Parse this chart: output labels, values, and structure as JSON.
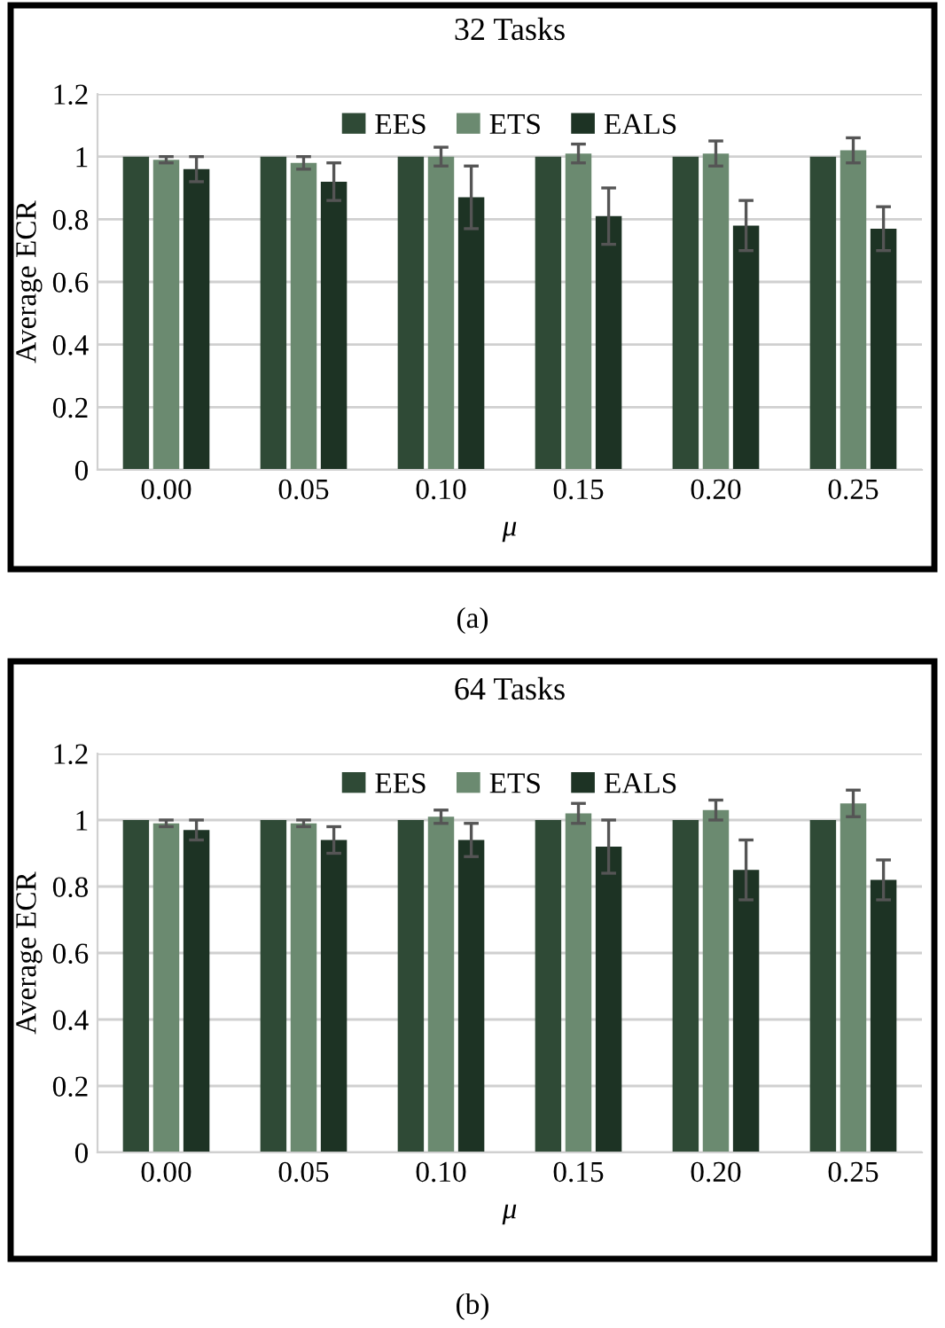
{
  "chart_data": [
    {
      "type": "bar",
      "title": "32 Tasks",
      "xlabel": "μ",
      "ylabel": "Average ECR",
      "categories": [
        "0.00",
        "0.05",
        "0.10",
        "0.15",
        "0.20",
        "0.25"
      ],
      "ylim": [
        0,
        1.2
      ],
      "yticks": [
        0,
        0.2,
        0.4,
        0.6,
        0.8,
        1,
        1.2
      ],
      "grid": "y",
      "legend": "top",
      "annotations": [
        "(a)"
      ],
      "series": [
        {
          "name": "EES",
          "color": "#2f4a36",
          "values": [
            1,
            1,
            1,
            1,
            1,
            1
          ]
        },
        {
          "name": "ETS",
          "color": "#6b8a70",
          "values": [
            0.99,
            0.98,
            1.0,
            1.01,
            1.01,
            1.02
          ],
          "errors": [
            0.01,
            0.02,
            0.03,
            0.03,
            0.04,
            0.04
          ]
        },
        {
          "name": "EALS",
          "color": "#1d3324",
          "values": [
            0.96,
            0.92,
            0.87,
            0.81,
            0.78,
            0.77
          ],
          "errors": [
            0.04,
            0.06,
            0.1,
            0.09,
            0.08,
            0.07
          ]
        }
      ]
    },
    {
      "type": "bar",
      "title": "64 Tasks",
      "xlabel": "μ",
      "ylabel": "Average ECR",
      "categories": [
        "0.00",
        "0.05",
        "0.10",
        "0.15",
        "0.20",
        "0.25"
      ],
      "ylim": [
        0,
        1.2
      ],
      "yticks": [
        0,
        0.2,
        0.4,
        0.6,
        0.8,
        1,
        1.2
      ],
      "grid": "y",
      "legend": "top",
      "annotations": [
        "(b)"
      ],
      "series": [
        {
          "name": "EES",
          "color": "#2f4a36",
          "values": [
            1,
            1,
            1,
            1,
            1,
            1
          ]
        },
        {
          "name": "ETS",
          "color": "#6b8a70",
          "values": [
            0.99,
            0.99,
            1.01,
            1.02,
            1.03,
            1.05
          ],
          "errors": [
            0.01,
            0.01,
            0.02,
            0.03,
            0.03,
            0.04
          ]
        },
        {
          "name": "EALS",
          "color": "#1d3324",
          "values": [
            0.97,
            0.94,
            0.94,
            0.92,
            0.85,
            0.82
          ],
          "errors": [
            0.03,
            0.04,
            0.05,
            0.08,
            0.09,
            0.06
          ]
        }
      ]
    }
  ]
}
